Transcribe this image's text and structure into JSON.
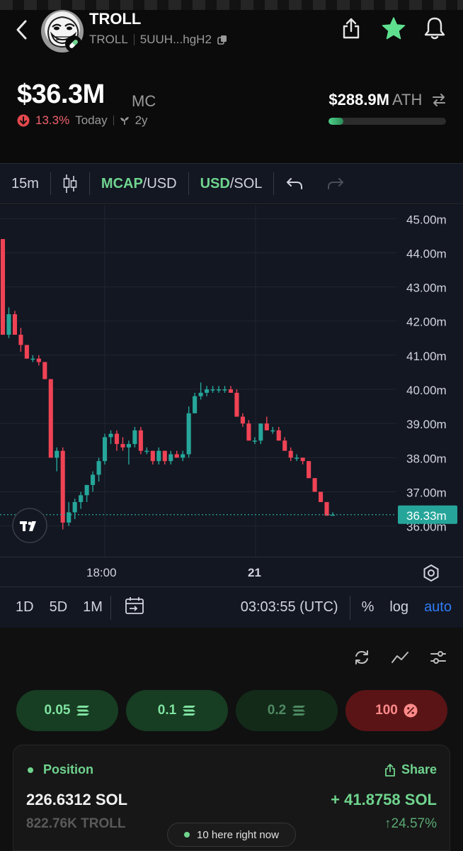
{
  "header": {
    "token_name": "TROLL",
    "token_symbol": "TROLL",
    "address_short": "5UUH...hgH2",
    "icons": [
      "back-chevron-icon",
      "share-icon",
      "star-icon",
      "bell-icon",
      "copy-icon",
      "pill-icon"
    ]
  },
  "market": {
    "mc_value": "$36.3M",
    "mc_label": "MC",
    "change_pct": "13.3%",
    "change_period": "Today",
    "age": "2y",
    "ath_value": "$288.9M",
    "ath_label": "ATH",
    "ath_progress": 0.126
  },
  "chart_toolbar": {
    "interval": "15m",
    "mcap_label": "MCAP",
    "mcap_pair": "/USD",
    "usd_label": "USD",
    "usd_pair": "/SOL"
  },
  "chart_data": {
    "type": "candlestick",
    "y_ticks": [
      "45.00m",
      "44.00m",
      "43.00m",
      "42.00m",
      "41.00m",
      "40.00m",
      "39.00m",
      "38.00m",
      "37.00m",
      "36.00m"
    ],
    "ylim": [
      35.1,
      45.4
    ],
    "x_labels": [
      "18:00",
      "21"
    ],
    "current_price_label": "36.33m",
    "current_price": 36.33,
    "candles": [
      [
        44.4,
        44.4,
        41.6,
        41.6
      ],
      [
        41.6,
        42.4,
        41.5,
        42.2
      ],
      [
        42.2,
        42.3,
        41.6,
        41.6
      ],
      [
        41.6,
        41.8,
        41.1,
        41.3
      ],
      [
        41.3,
        41.3,
        40.9,
        40.9
      ],
      [
        40.9,
        41.0,
        40.8,
        40.9
      ],
      [
        40.9,
        41.0,
        40.7,
        40.8
      ],
      [
        40.8,
        40.8,
        40.3,
        40.3
      ],
      [
        40.3,
        40.3,
        38.0,
        38.0
      ],
      [
        38.0,
        38.3,
        37.6,
        38.2
      ],
      [
        38.2,
        38.3,
        35.9,
        36.1
      ],
      [
        36.1,
        36.7,
        36.0,
        36.4
      ],
      [
        36.4,
        36.8,
        36.2,
        36.7
      ],
      [
        36.7,
        37.0,
        36.5,
        36.9
      ],
      [
        36.9,
        37.2,
        36.7,
        37.2
      ],
      [
        37.2,
        37.6,
        37.0,
        37.5
      ],
      [
        37.5,
        38.0,
        37.3,
        37.9
      ],
      [
        37.9,
        38.7,
        37.8,
        38.6
      ],
      [
        38.6,
        38.8,
        38.4,
        38.7
      ],
      [
        38.7,
        38.8,
        38.2,
        38.4
      ],
      [
        38.4,
        38.6,
        38.2,
        38.3
      ],
      [
        38.3,
        38.5,
        37.8,
        38.4
      ],
      [
        38.4,
        38.9,
        38.3,
        38.8
      ],
      [
        38.8,
        38.9,
        38.1,
        38.2
      ],
      [
        38.2,
        38.3,
        38.1,
        38.2
      ],
      [
        38.2,
        38.2,
        37.8,
        37.9
      ],
      [
        37.9,
        38.3,
        37.8,
        38.2
      ],
      [
        38.2,
        38.2,
        37.8,
        37.9
      ],
      [
        37.9,
        38.2,
        37.8,
        38.1
      ],
      [
        38.1,
        38.2,
        38.0,
        38.0
      ],
      [
        38.0,
        38.2,
        37.9,
        38.1
      ],
      [
        38.1,
        39.5,
        38.0,
        39.3
      ],
      [
        39.3,
        39.9,
        39.3,
        39.8
      ],
      [
        39.8,
        40.2,
        39.7,
        39.9
      ],
      [
        39.9,
        40.1,
        39.8,
        40.0
      ],
      [
        40.0,
        40.1,
        39.9,
        40.0
      ],
      [
        40.0,
        40.1,
        39.9,
        40.0
      ],
      [
        40.0,
        40.1,
        39.9,
        40.0
      ],
      [
        40.0,
        40.1,
        39.9,
        39.9
      ],
      [
        39.9,
        40.0,
        39.2,
        39.2
      ],
      [
        39.2,
        39.3,
        38.9,
        39.0
      ],
      [
        39.0,
        39.1,
        38.5,
        38.5
      ],
      [
        38.5,
        38.6,
        38.4,
        38.5
      ],
      [
        38.5,
        39.0,
        38.4,
        39.0
      ],
      [
        39.0,
        39.2,
        38.8,
        38.8
      ],
      [
        38.8,
        38.9,
        38.7,
        38.8
      ],
      [
        38.8,
        38.9,
        38.5,
        38.5
      ],
      [
        38.5,
        38.6,
        38.2,
        38.2
      ],
      [
        38.2,
        38.3,
        37.9,
        38.0
      ],
      [
        38.0,
        38.1,
        37.9,
        38.0
      ],
      [
        38.0,
        38.0,
        37.8,
        37.9
      ],
      [
        37.9,
        37.9,
        37.4,
        37.4
      ],
      [
        37.4,
        37.4,
        37.0,
        37.0
      ],
      [
        37.0,
        37.0,
        36.7,
        36.7
      ],
      [
        36.7,
        36.7,
        36.3,
        36.3
      ],
      [
        36.3,
        36.4,
        36.3,
        36.33
      ]
    ]
  },
  "range_bar": {
    "ranges": [
      "1D",
      "5D",
      "1M"
    ],
    "time": "03:03:55 (UTC)",
    "percent": "%",
    "log": "log",
    "auto": "auto"
  },
  "quick_buy": [
    {
      "label": "0.05",
      "unit_icon": "sol-icon"
    },
    {
      "label": "0.1",
      "unit_icon": "sol-icon"
    },
    {
      "label": "0.2",
      "unit_icon": "sol-icon"
    },
    {
      "label": "100",
      "unit_icon": "percent-icon"
    }
  ],
  "position": {
    "title": "Position",
    "share_label": "Share",
    "sol_amount": "226.6312 SOL",
    "token_amount": "822.76K TROLL",
    "pnl": "+ 41.8758 SOL",
    "pnl_pct": "24.57%"
  },
  "presence": {
    "text": "10 here right now"
  },
  "colors": {
    "up": "#26a69a",
    "down": "#ef4355",
    "accent_green": "#6fd48e",
    "auto_blue": "#2f7cf6"
  }
}
